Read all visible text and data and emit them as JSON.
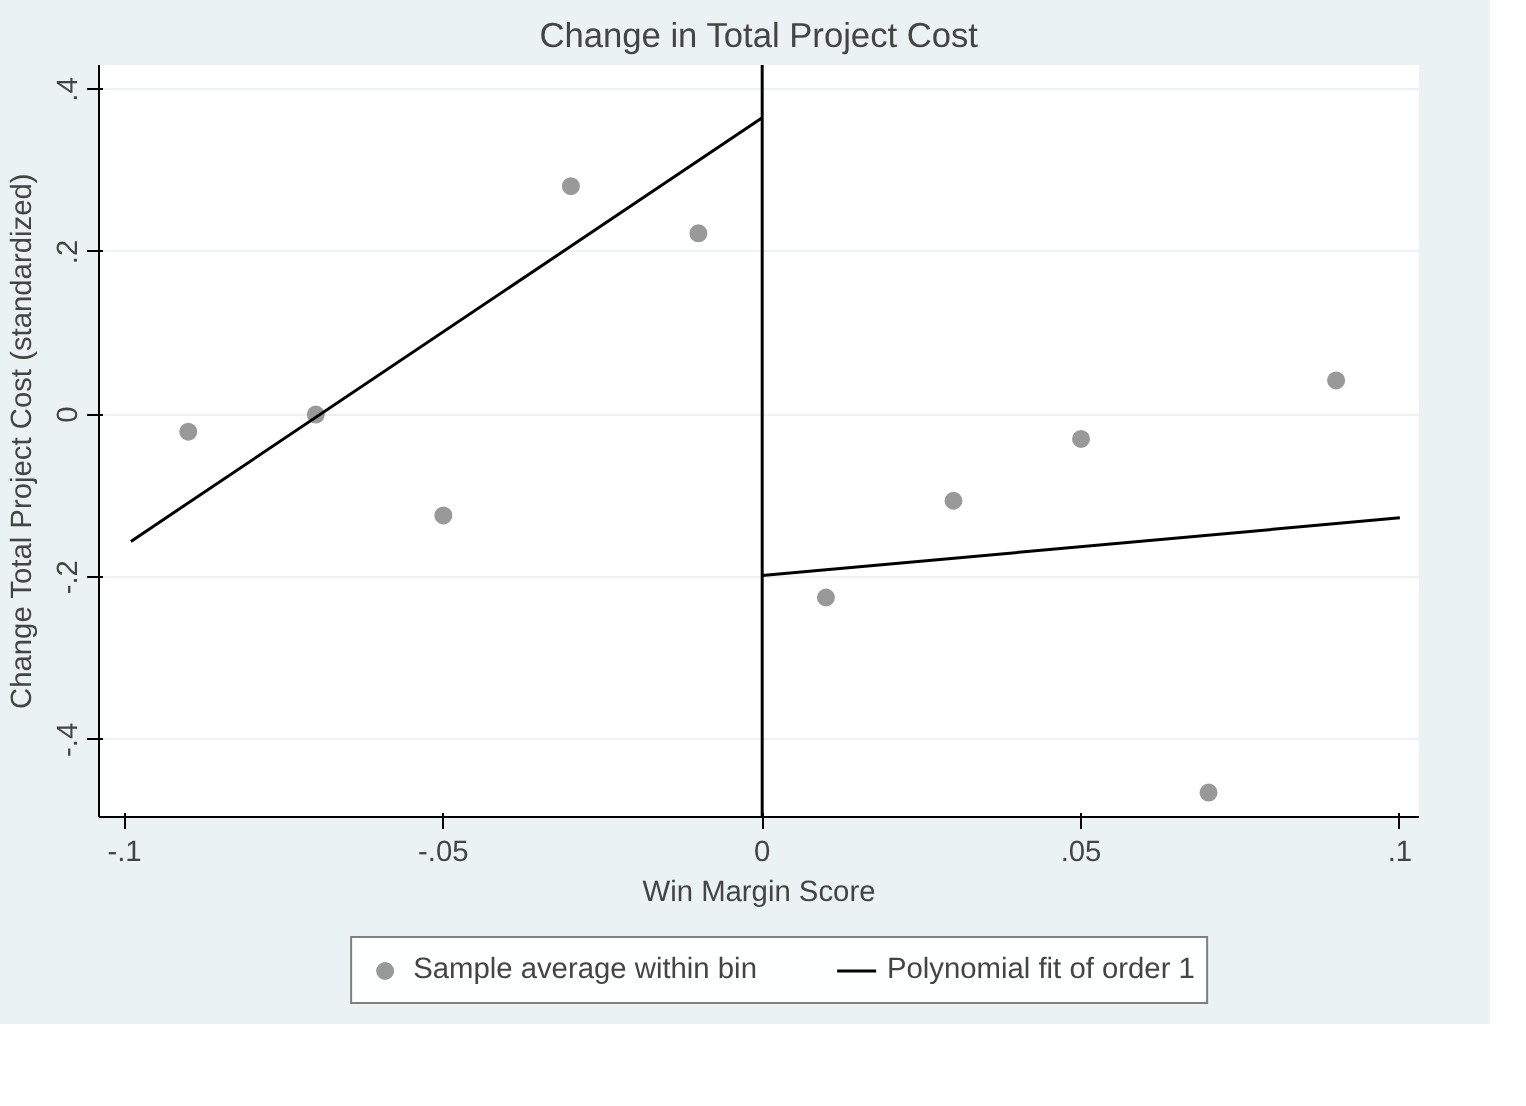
{
  "chart_data": {
    "type": "scatter",
    "title": "Change in Total Project Cost",
    "xlabel": "Win Margin Score",
    "ylabel": "Change Total Project Cost (standardized)",
    "xlim": [
      -0.104,
      0.103
    ],
    "ylim": [
      -0.495,
      0.43
    ],
    "xticks": [
      {
        "value": -0.1,
        "label": "-.1"
      },
      {
        "value": -0.05,
        "label": "-.05"
      },
      0,
      {
        "value": 0.05,
        "label": ".05"
      },
      {
        "value": 0.1,
        "label": ".1"
      }
    ],
    "yticks": [
      {
        "value": -0.4,
        "label": "-.4"
      },
      {
        "value": -0.2,
        "label": "-.2"
      },
      0,
      {
        "value": 0.2,
        "label": ".2"
      },
      {
        "value": 0.4,
        "label": ".4"
      }
    ],
    "grid": "y",
    "legend": "bottom",
    "ref_lines": [
      {
        "axis": "x",
        "value": 0,
        "color": "#000000"
      }
    ],
    "series": [
      {
        "name": "Sample average within bin",
        "marker": "circle",
        "color": "#999999",
        "x": [
          -0.09,
          -0.07,
          -0.05,
          -0.03,
          -0.01,
          0.01,
          0.03,
          0.05,
          0.07,
          0.09
        ],
        "values": [
          -0.021,
          0.0,
          -0.124,
          0.281,
          0.223,
          -0.225,
          -0.106,
          -0.03,
          -0.465,
          0.042
        ]
      },
      {
        "name": "Polynomial fit of order 1",
        "type": "line",
        "color": "#000000",
        "x": [
          -0.099,
          0
        ],
        "values": [
          -0.156,
          0.365
        ]
      },
      {
        "type": "line",
        "color": "#000000",
        "x": [
          0,
          0.1
        ],
        "values": [
          -0.198,
          -0.127
        ]
      }
    ]
  }
}
